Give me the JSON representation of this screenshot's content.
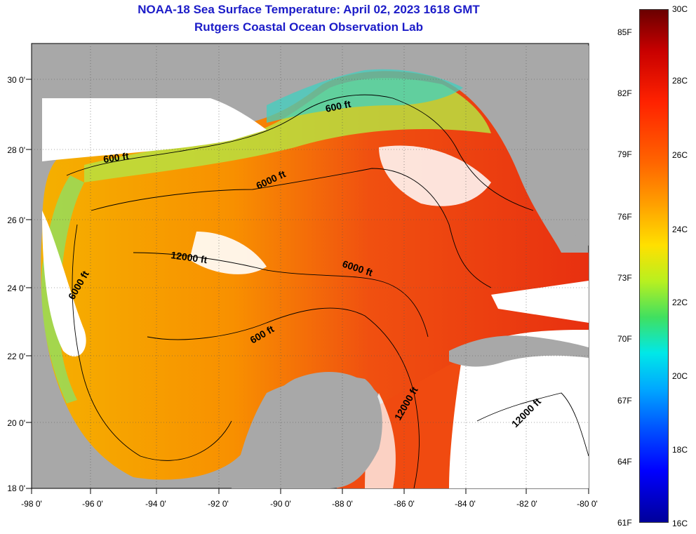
{
  "title": "NOAA-18 Sea Surface Temperature:  April 02, 2023 1618 GMT",
  "subtitle": "Rutgers Coastal Ocean Observation Lab",
  "lon_labels": [
    "-98 0'",
    "-96 0'",
    "-94 0'",
    "-92 0'",
    "-90 0'",
    "-88 0'",
    "-86 0'",
    "-84 0'",
    "-82 0'",
    "-80 0'"
  ],
  "lat_labels": [
    "30 0'",
    "28 0'",
    "26 0'",
    "24 0'",
    "22 0'",
    "20 0'",
    "18 0'"
  ],
  "contour_labels": [
    "600 ft",
    "600 ft",
    "6000 ft",
    "12000 ft",
    "6000 ft",
    "6000 ft",
    "600 ft",
    "12000 ft",
    "12000 ft"
  ],
  "colorbar": {
    "fahrenheit": [
      "85F",
      "82F",
      "79F",
      "76F",
      "73F",
      "70F",
      "67F",
      "64F",
      "61F"
    ],
    "celsius": [
      "30C",
      "28C",
      "26C",
      "24C",
      "22C",
      "20C",
      "18C",
      "16C"
    ]
  },
  "colors": {
    "title": "#1c1cc8",
    "land": "#a8a8a8",
    "cloud": "#ffffff",
    "warm": "#f04010",
    "cool": "#30c0ff"
  }
}
